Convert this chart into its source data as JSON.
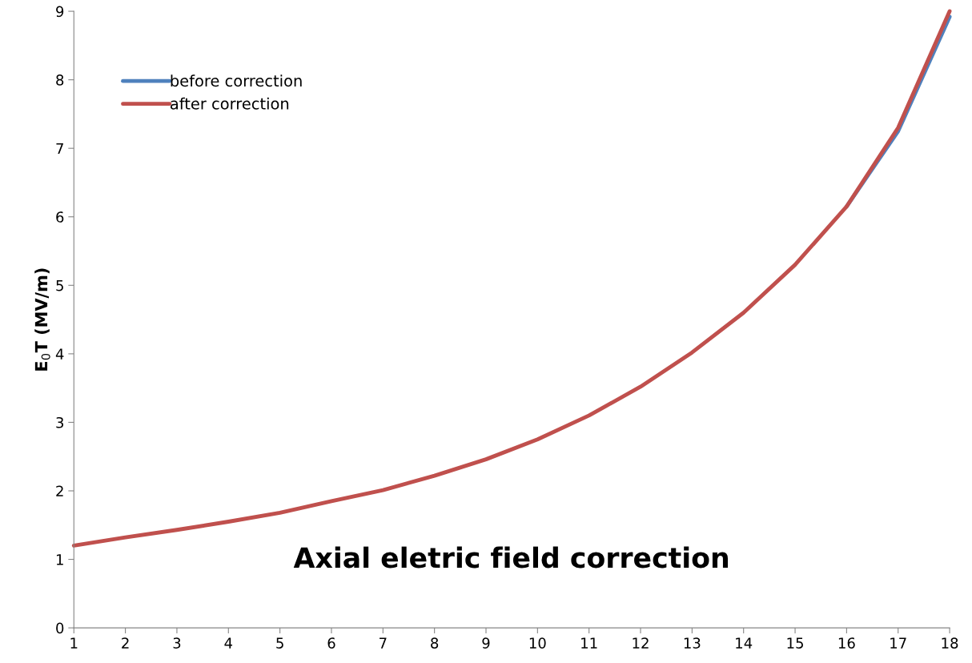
{
  "chart_data": {
    "type": "line",
    "title": "Axial eletric field correction",
    "ylabel": "E$_{0}$T (MV/m)",
    "x": [
      1,
      2,
      3,
      4,
      5,
      6,
      7,
      8,
      9,
      10,
      11,
      12,
      13,
      14,
      15,
      16,
      17,
      18
    ],
    "series": [
      {
        "name": "before correction",
        "color": "#4f81bd",
        "values": [
          null,
          null,
          null,
          null,
          null,
          null,
          null,
          null,
          null,
          null,
          null,
          null,
          null,
          null,
          null,
          6.15,
          7.25,
          8.92
        ]
      },
      {
        "name": "after correction",
        "color": "#c0504d",
        "values": [
          1.2,
          1.32,
          1.43,
          1.55,
          1.68,
          1.85,
          2.01,
          2.22,
          2.46,
          2.75,
          3.1,
          3.52,
          4.02,
          4.6,
          5.3,
          6.15,
          7.3,
          9.0
        ]
      }
    ],
    "xlim": [
      1,
      18
    ],
    "xticks": [
      1,
      2,
      3,
      4,
      5,
      6,
      7,
      8,
      9,
      10,
      11,
      12,
      13,
      14,
      15,
      16,
      17,
      18
    ],
    "ylim": [
      0,
      9
    ],
    "yticks": [
      0,
      1,
      2,
      3,
      4,
      5,
      6,
      7,
      8,
      9
    ],
    "grid": false,
    "legend": "top left",
    "marker": "none",
    "line_style": "solid"
  }
}
